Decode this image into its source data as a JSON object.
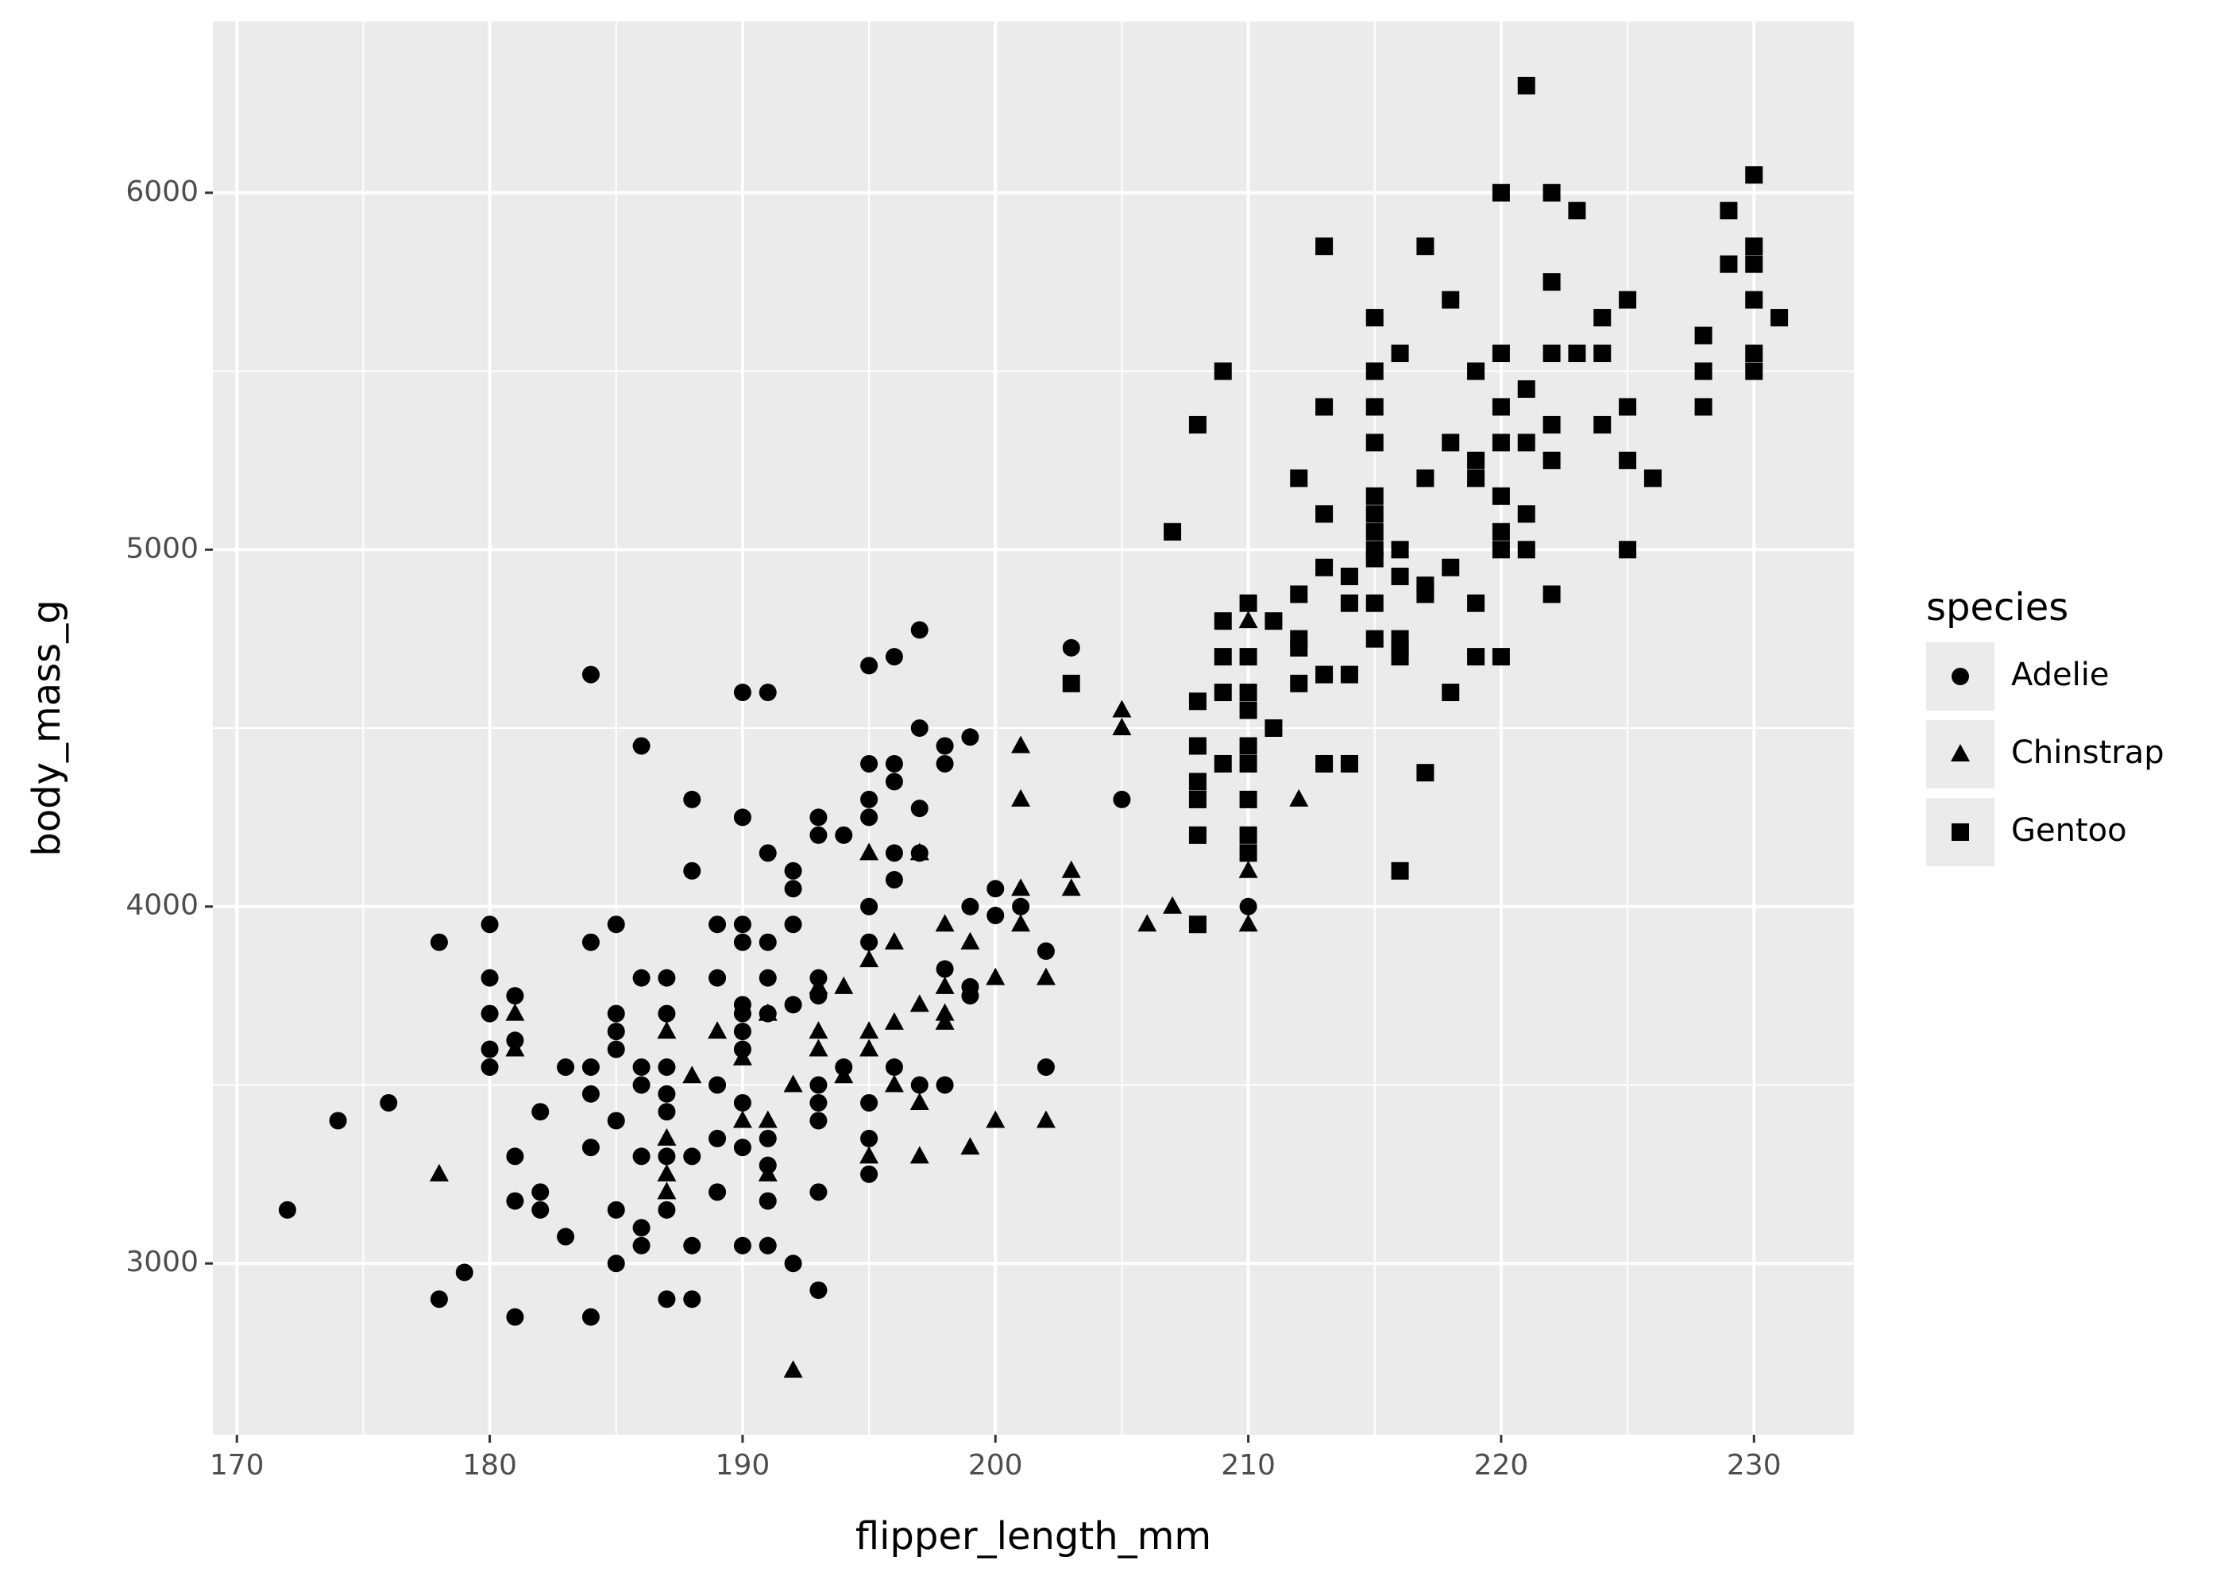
{
  "chart_data": {
    "type": "scatter",
    "x_label": "flipper_length_mm",
    "y_label": "body_mass_g",
    "legend_title": "species",
    "xlim": [
      169.05,
      233.95
    ],
    "ylim": [
      2520,
      6480
    ],
    "xticks": [
      170,
      180,
      190,
      200,
      210,
      220,
      230
    ],
    "yticks": [
      3000,
      4000,
      5000,
      6000
    ],
    "grid": true,
    "legend_position": "right",
    "series": [
      {
        "name": "Adelie",
        "shape": "circle",
        "color": "#000000",
        "x": [
          172,
          174,
          176,
          178,
          178,
          179,
          180,
          180,
          180,
          180,
          180,
          181,
          181,
          181,
          181,
          181,
          182,
          182,
          182,
          183,
          183,
          184,
          184,
          184,
          184,
          184,
          184,
          185,
          185,
          185,
          185,
          185,
          185,
          185,
          186,
          186,
          186,
          186,
          186,
          186,
          186,
          187,
          187,
          187,
          187,
          187,
          187,
          187,
          187,
          188,
          188,
          188,
          188,
          188,
          189,
          189,
          189,
          189,
          189,
          190,
          190,
          190,
          190,
          190,
          190,
          190,
          190,
          190,
          190,
          190,
          191,
          191,
          191,
          191,
          191,
          191,
          191,
          191,
          191,
          192,
          192,
          192,
          192,
          192,
          193,
          193,
          193,
          193,
          193,
          193,
          193,
          193,
          193,
          194,
          194,
          195,
          195,
          195,
          195,
          195,
          195,
          195,
          195,
          195,
          196,
          196,
          196,
          196,
          196,
          196,
          197,
          197,
          197,
          197,
          197,
          198,
          198,
          198,
          198,
          199,
          199,
          199,
          199,
          200,
          200,
          201,
          202,
          202,
          203,
          205,
          210
        ],
        "y": [
          3150,
          3400,
          3450,
          3900,
          2900,
          2975,
          3950,
          3800,
          3700,
          3600,
          3550,
          3750,
          3625,
          3300,
          3175,
          2850,
          3425,
          3200,
          3150,
          3550,
          3075,
          4650,
          3900,
          3550,
          3475,
          3325,
          2850,
          3950,
          3700,
          3650,
          3600,
          3400,
          3150,
          3000,
          4450,
          3800,
          3550,
          3500,
          3300,
          3100,
          3050,
          3800,
          3700,
          3550,
          3475,
          3425,
          3300,
          3150,
          2900,
          4300,
          4100,
          3300,
          3050,
          2900,
          3950,
          3800,
          3500,
          3350,
          3200,
          4600,
          4250,
          3950,
          3900,
          3725,
          3700,
          3650,
          3600,
          3450,
          3325,
          3050,
          4600,
          4150,
          3900,
          3800,
          3700,
          3350,
          3275,
          3175,
          3050,
          4100,
          4050,
          3950,
          3725,
          3000,
          4250,
          4200,
          3800,
          3750,
          3500,
          3450,
          3400,
          3200,
          2925,
          4200,
          3550,
          4675,
          4400,
          4300,
          4250,
          4000,
          3900,
          3450,
          3350,
          3250,
          4700,
          4400,
          4350,
          4150,
          4075,
          3550,
          4775,
          4500,
          4275,
          4150,
          3500,
          4450,
          4400,
          3825,
          3500,
          4475,
          4000,
          3775,
          3750,
          4050,
          3975,
          4000,
          3875,
          3550,
          4725,
          4300,
          4000
        ]
      },
      {
        "name": "Chinstrap",
        "shape": "triangle",
        "color": "#000000",
        "x": [
          178,
          181,
          181,
          187,
          187,
          187,
          187,
          188,
          189,
          190,
          190,
          191,
          191,
          191,
          192,
          192,
          193,
          193,
          193,
          194,
          194,
          195,
          195,
          195,
          195,
          195,
          196,
          196,
          196,
          197,
          197,
          197,
          197,
          198,
          198,
          198,
          198,
          199,
          199,
          200,
          200,
          201,
          201,
          201,
          201,
          202,
          202,
          203,
          203,
          205,
          205,
          206,
          207,
          210,
          210,
          210,
          212
        ],
        "y": [
          3250,
          3700,
          3600,
          3650,
          3350,
          3250,
          3200,
          3525,
          3650,
          3575,
          3400,
          3400,
          3250,
          3700,
          3500,
          2700,
          3650,
          3600,
          3775,
          3775,
          3525,
          4150,
          3850,
          3650,
          3600,
          3300,
          3900,
          3675,
          3500,
          4150,
          3725,
          3450,
          3300,
          3950,
          3775,
          3700,
          3675,
          3900,
          3325,
          3800,
          3400,
          4450,
          4300,
          4050,
          3950,
          3800,
          3400,
          4100,
          4050,
          4550,
          4500,
          3950,
          4000,
          4800,
          4100,
          3950,
          4300
        ]
      },
      {
        "name": "Gentoo",
        "shape": "square",
        "color": "#000000",
        "x": [
          203,
          207,
          208,
          208,
          208,
          208,
          208,
          208,
          208,
          209,
          209,
          209,
          209,
          209,
          210,
          210,
          210,
          210,
          210,
          210,
          210,
          210,
          210,
          211,
          211,
          212,
          212,
          212,
          212,
          212,
          213,
          213,
          213,
          213,
          213,
          213,
          214,
          214,
          214,
          214,
          215,
          215,
          215,
          215,
          215,
          215,
          215,
          215,
          215,
          215,
          215,
          216,
          216,
          216,
          216,
          216,
          216,
          216,
          217,
          217,
          217,
          217,
          217,
          218,
          218,
          218,
          218,
          219,
          219,
          219,
          219,
          219,
          220,
          220,
          220,
          220,
          220,
          220,
          220,
          220,
          221,
          221,
          221,
          221,
          221,
          222,
          222,
          222,
          222,
          222,
          222,
          223,
          223,
          224,
          224,
          224,
          225,
          225,
          225,
          225,
          226,
          228,
          228,
          228,
          229,
          229,
          230,
          230,
          230,
          230,
          230,
          230,
          231
        ],
        "y": [
          4625,
          5050,
          5350,
          4575,
          4450,
          4350,
          4300,
          4200,
          3950,
          5500,
          4800,
          4700,
          4600,
          4400,
          4850,
          4700,
          4600,
          4550,
          4450,
          4400,
          4300,
          4200,
          4150,
          4800,
          4500,
          5200,
          4875,
          4750,
          4725,
          4625,
          5850,
          5400,
          5100,
          4950,
          4650,
          4400,
          4925,
          4850,
          4650,
          4400,
          5650,
          5500,
          5400,
          5300,
          5150,
          5100,
          5050,
          5000,
          4975,
          4850,
          4750,
          5550,
          5000,
          4925,
          4750,
          4725,
          4700,
          4100,
          5850,
          5200,
          4900,
          4875,
          4375,
          5700,
          5300,
          4950,
          4600,
          5500,
          5250,
          5200,
          4850,
          4700,
          6000,
          5550,
          5400,
          5300,
          5150,
          5050,
          5000,
          4700,
          6300,
          5450,
          5300,
          5100,
          5000,
          6000,
          5750,
          5550,
          5350,
          5250,
          4875,
          5950,
          5550,
          5650,
          5550,
          5350,
          5700,
          5400,
          5250,
          5000,
          5200,
          5600,
          5500,
          5400,
          5950,
          5800,
          6050,
          5850,
          5800,
          5700,
          5550,
          5500,
          5650
        ]
      }
    ]
  }
}
